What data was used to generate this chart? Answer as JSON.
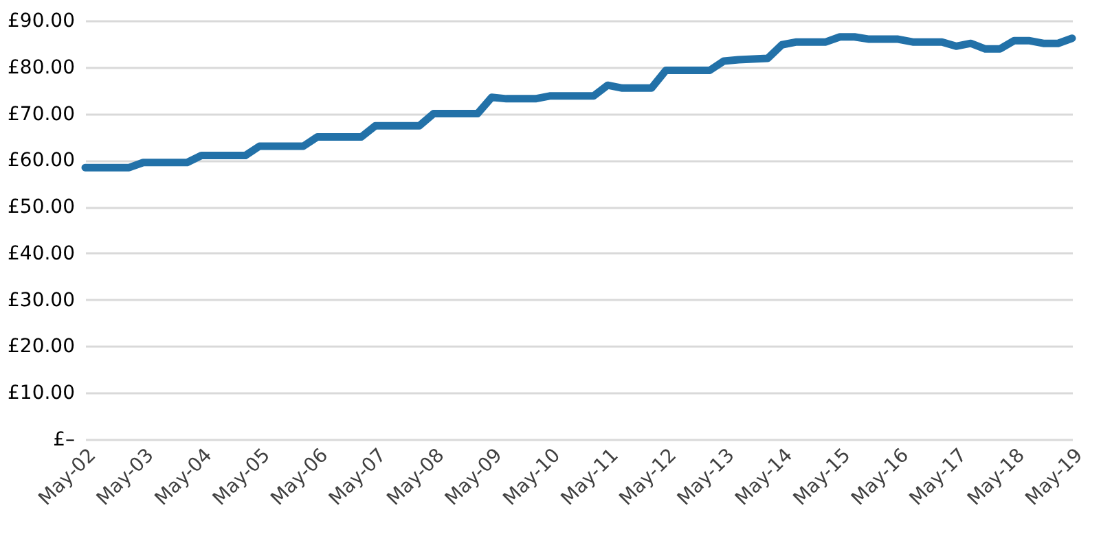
{
  "chart_data": {
    "type": "line",
    "x": [
      "2002-05",
      "2003-02",
      "2003-05",
      "2004-02",
      "2004-05",
      "2005-02",
      "2005-05",
      "2006-02",
      "2006-05",
      "2007-02",
      "2007-05",
      "2008-02",
      "2008-05",
      "2009-02",
      "2009-05",
      "2009-08",
      "2010-02",
      "2010-05",
      "2011-02",
      "2011-05",
      "2011-08",
      "2012-02",
      "2012-05",
      "2013-02",
      "2013-05",
      "2013-08",
      "2014-02",
      "2014-05",
      "2014-08",
      "2015-02",
      "2015-05",
      "2015-08",
      "2015-11",
      "2016-05",
      "2016-08",
      "2017-02",
      "2017-05",
      "2017-08",
      "2017-11",
      "2018-02",
      "2018-05",
      "2018-08",
      "2018-11",
      "2019-02",
      "2019-05"
    ],
    "series": [
      {
        "color": "#2271a8",
        "values": [
          58.4,
          58.4,
          59.5,
          59.5,
          61.0,
          61.0,
          63.0,
          63.0,
          65.0,
          65.0,
          67.4,
          67.4,
          70.0,
          70.0,
          73.5,
          73.2,
          73.2,
          73.8,
          73.8,
          76.1,
          75.5,
          75.5,
          79.3,
          79.3,
          81.3,
          81.6,
          81.9,
          84.8,
          85.4,
          85.4,
          86.5,
          86.5,
          86.0,
          86.0,
          85.4,
          85.4,
          84.5,
          85.1,
          83.9,
          83.9,
          85.7,
          85.7,
          85.1,
          85.1,
          86.2
        ]
      }
    ],
    "xlim": [
      "2002-05",
      "2019-05"
    ],
    "xticks": [
      {
        "value": "2002-05",
        "label": "May-02"
      },
      {
        "value": "2003-05",
        "label": "May-03"
      },
      {
        "value": "2004-05",
        "label": "May-04"
      },
      {
        "value": "2005-05",
        "label": "May-05"
      },
      {
        "value": "2006-05",
        "label": "May-06"
      },
      {
        "value": "2007-05",
        "label": "May-07"
      },
      {
        "value": "2008-05",
        "label": "May-08"
      },
      {
        "value": "2009-05",
        "label": "May-09"
      },
      {
        "value": "2010-05",
        "label": "May-10"
      },
      {
        "value": "2011-05",
        "label": "May-11"
      },
      {
        "value": "2012-05",
        "label": "May-12"
      },
      {
        "value": "2013-05",
        "label": "May-13"
      },
      {
        "value": "2014-05",
        "label": "May-14"
      },
      {
        "value": "2015-05",
        "label": "May-15"
      },
      {
        "value": "2016-05",
        "label": "May-16"
      },
      {
        "value": "2017-05",
        "label": "May-17"
      },
      {
        "value": "2018-05",
        "label": "May-18"
      },
      {
        "value": "2019-05",
        "label": "May-19"
      }
    ],
    "ylim": [
      0,
      90
    ],
    "yticks": [
      {
        "value": 0,
        "label": "£–"
      },
      {
        "value": 10,
        "label": "£10.00"
      },
      {
        "value": 20,
        "label": "£20.00"
      },
      {
        "value": 30,
        "label": "£30.00"
      },
      {
        "value": 40,
        "label": "£40.00"
      },
      {
        "value": 50,
        "label": "£50.00"
      },
      {
        "value": 60,
        "label": "£60.00"
      },
      {
        "value": 70,
        "label": "£70.00"
      },
      {
        "value": 80,
        "label": "£80.00"
      },
      {
        "value": 90,
        "label": "£90.00"
      }
    ],
    "grid": "y",
    "marker": "none",
    "line_style": "solid"
  }
}
